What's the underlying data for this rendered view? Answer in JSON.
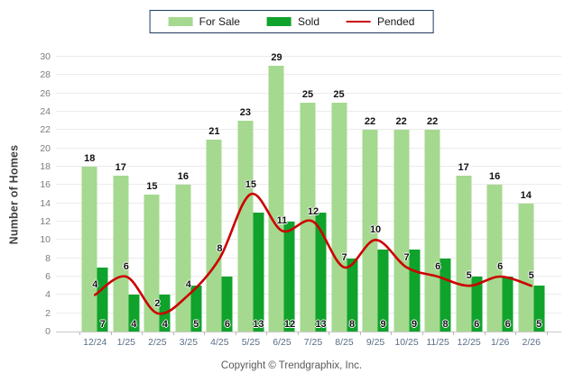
{
  "legend": {
    "items": [
      {
        "label": "For Sale",
        "type": "swatch",
        "color": "#a5d98f"
      },
      {
        "label": "Sold",
        "type": "swatch",
        "color": "#0fa32c"
      },
      {
        "label": "Pended",
        "type": "line",
        "color": "#cc0000"
      }
    ]
  },
  "y_axis": {
    "title": "Number of Homes",
    "ticks": [
      0,
      2,
      4,
      6,
      8,
      10,
      12,
      14,
      16,
      18,
      20,
      22,
      24,
      26,
      28,
      30
    ]
  },
  "footer": {
    "copyright": "Copyright © Trendgraphix, Inc."
  },
  "colors": {
    "for_sale": "#a5d98f",
    "sold": "#0fa32c",
    "pended": "#cc0000",
    "grid": "#ebebeb"
  },
  "chart_data": {
    "type": "bar",
    "categories": [
      "12/24",
      "1/25",
      "2/25",
      "3/25",
      "4/25",
      "5/25",
      "6/25",
      "7/25",
      "8/25",
      "9/25",
      "10/25",
      "11/25",
      "12/25",
      "1/26",
      "2/26"
    ],
    "series": [
      {
        "name": "For Sale",
        "type": "bar",
        "color": "#a5d98f",
        "values": [
          18,
          17,
          15,
          16,
          21,
          23,
          29,
          25,
          25,
          22,
          22,
          22,
          17,
          16,
          14
        ]
      },
      {
        "name": "Sold",
        "type": "bar",
        "color": "#0fa32c",
        "values": [
          7,
          4,
          4,
          5,
          6,
          13,
          12,
          13,
          8,
          9,
          9,
          8,
          6,
          6,
          5
        ]
      },
      {
        "name": "Pended",
        "type": "line",
        "color": "#cc0000",
        "values": [
          4,
          6,
          2,
          4,
          8,
          15,
          11,
          12,
          7,
          10,
          7,
          6,
          5,
          6,
          5
        ]
      }
    ],
    "title": "",
    "xlabel": "",
    "ylabel": "Number of Homes",
    "ylim": [
      0,
      30
    ],
    "ytick_step": 2,
    "grid": true,
    "legend_position": "top-center",
    "data_labels": true
  }
}
